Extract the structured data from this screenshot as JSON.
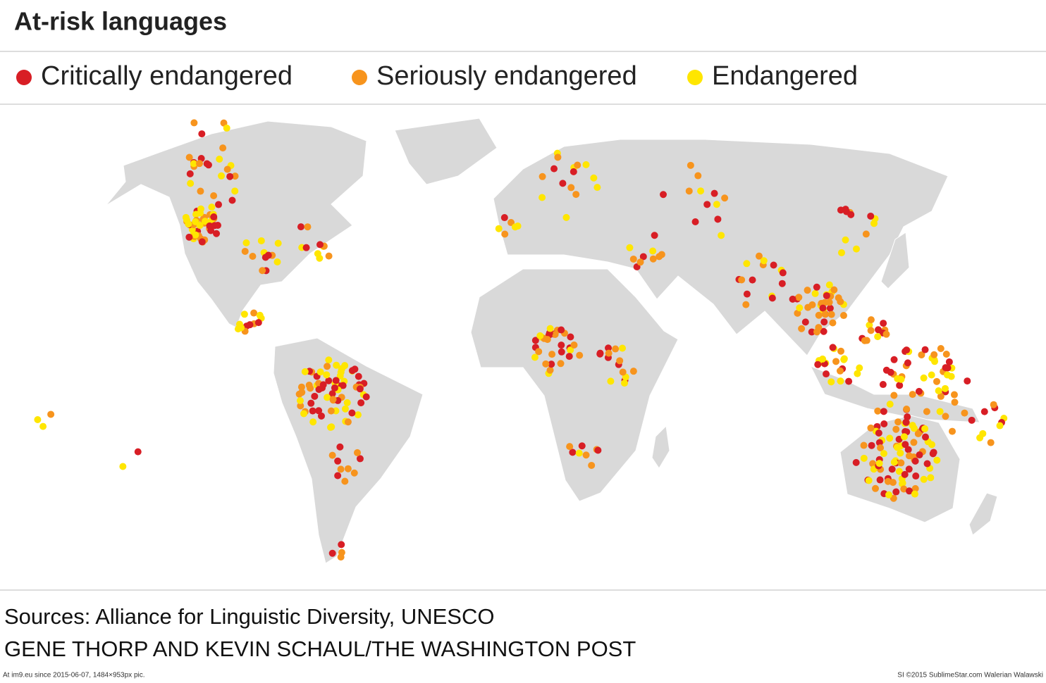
{
  "header": {
    "title": "At-risk languages"
  },
  "legend": {
    "items": [
      {
        "label": "Critically endangered",
        "color": "#d81e25"
      },
      {
        "label": "Seriously endangered",
        "color": "#f7941d"
      },
      {
        "label": "Endangered",
        "color": "#ffe600"
      }
    ]
  },
  "sources": {
    "line1": "Sources: Alliance for Linguistic Diversity, UNESCO",
    "line2": "GENE THORP AND KEVIN SCHAUL/THE WASHINGTON POST"
  },
  "footer": {
    "left": "At im9.eu since 2015-06-07, 1484×953px pic.",
    "right": "SI ©2015 SublimeStar.com Walerian Walawski"
  }
}
